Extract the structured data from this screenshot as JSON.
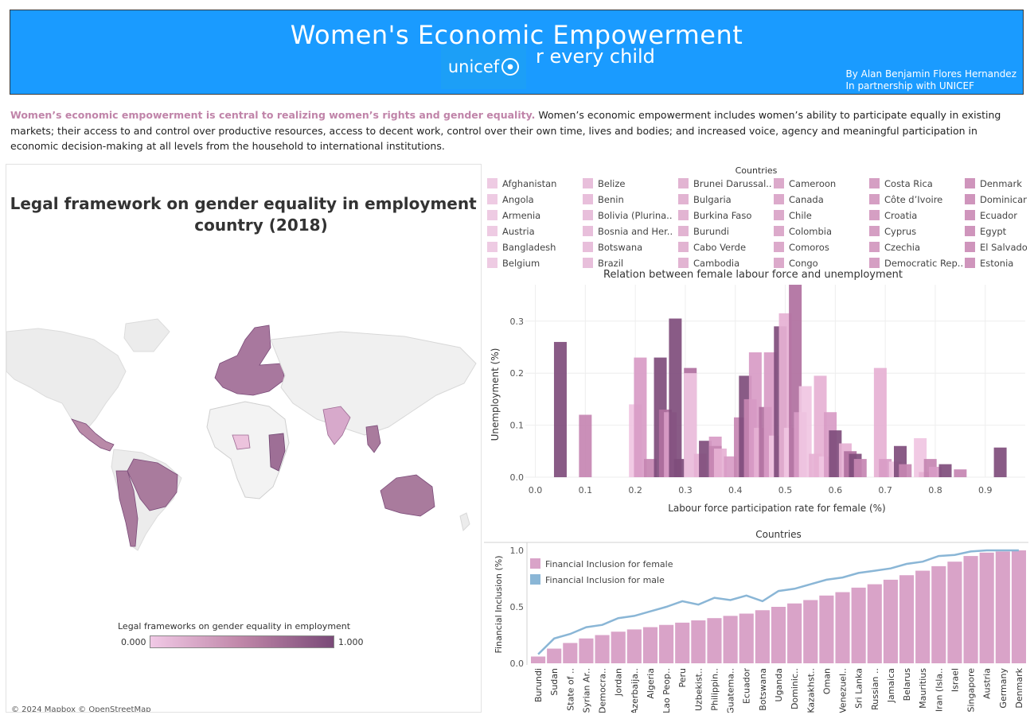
{
  "header": {
    "title": "Women's Economic Empowerment",
    "logo_text": "unicef",
    "tagline": "r every child",
    "byline_1": "By Alan Benjamin Flores Hernandez",
    "byline_2": "In partnership with UNICEF",
    "background_color": "#1a9bff"
  },
  "intro": {
    "highlight": "Women’s economic empowerment is central to realizing women’s rights and gender equality.",
    "body": " Women’s economic empowerment includes women’s ability to participate equally in existing markets; their access to and control over productive resources, access to decent work, control over their own time, lives and bodies; and increased voice, agency and meaningful participation in economic decision-making at all levels from the household to international institutions."
  },
  "map": {
    "title": "Legal framework on gender equality in employment per country (2018)",
    "legend_title": "Legal frameworks on gender equality in employment",
    "legend_min": "0.000",
    "legend_max": "1.000",
    "credit": "© 2024 Mapbox © OpenStreetMap",
    "color_low": "#f1c9e6",
    "color_high": "#7a4a78"
  },
  "countries_legend": {
    "title": "Countries",
    "columns": [
      [
        "Afghanistan",
        "Angola",
        "Armenia",
        "Austria",
        "Bangladesh",
        "Belgium"
      ],
      [
        "Belize",
        "Benin",
        "Bolivia (Plurina..",
        "Bosnia and Her..",
        "Botswana",
        "Brazil"
      ],
      [
        "Brunei Darussal..",
        "Bulgaria",
        "Burkina Faso",
        "Burundi",
        "Cabo Verde",
        "Cambodia"
      ],
      [
        "Cameroon",
        "Canada",
        "Chile",
        "Colombia",
        "Comoros",
        "Congo"
      ],
      [
        "Costa Rica",
        "Côte d’Ivoire",
        "Croatia",
        "Cyprus",
        "Czechia",
        "Democratic Rep.."
      ],
      [
        "Denmark",
        "Dominican..",
        "Ecuador",
        "Egypt",
        "El Salvador",
        "Estonia"
      ]
    ],
    "swatch_colors": [
      "#eecbe3",
      "#e8bfdb",
      "#e2b4d2",
      "#dcaacb",
      "#d59fc3",
      "#cf95bc"
    ]
  },
  "scatter": {
    "title": "Relation between female labour force and unemployment",
    "xlabel": "Labour force participation rate for female (%)",
    "ylabel": "Unemployment (%)",
    "x_ticks": [
      "0.0",
      "0.1",
      "0.2",
      "0.3",
      "0.4",
      "0.5",
      "0.6",
      "0.7",
      "0.8",
      "0.9"
    ],
    "y_ticks": [
      "0.0",
      "0.1",
      "0.2",
      "0.3"
    ]
  },
  "inclusion": {
    "title": "Countries",
    "ylabel": "Financial Inclusion (%)",
    "legend_female": "Financial Inclusion for female",
    "legend_male": "Financial Inclusion for male",
    "y_ticks": [
      "0.0",
      "0.5",
      "1.0"
    ],
    "female_color": "#d9a3c8",
    "male_color": "#8ab6d6"
  },
  "chart_data": [
    {
      "type": "bar",
      "title": "Relation between female labour force and unemployment",
      "xlabel": "Labour force participation rate for female (%)",
      "ylabel": "Unemployment (%)",
      "xlim": [
        -0.02,
        0.98
      ],
      "ylim": [
        0,
        0.37
      ],
      "bars": [
        {
          "x": 0.05,
          "y": 0.26,
          "c": 5
        },
        {
          "x": 0.1,
          "y": 0.12,
          "c": 3
        },
        {
          "x": 0.2,
          "y": 0.14,
          "c": 0
        },
        {
          "x": 0.21,
          "y": 0.23,
          "c": 2
        },
        {
          "x": 0.23,
          "y": 0.035,
          "c": 3
        },
        {
          "x": 0.25,
          "y": 0.23,
          "c": 5
        },
        {
          "x": 0.26,
          "y": 0.13,
          "c": 4
        },
        {
          "x": 0.27,
          "y": 0.125,
          "c": 2
        },
        {
          "x": 0.28,
          "y": 0.305,
          "c": 5
        },
        {
          "x": 0.29,
          "y": 0.035,
          "c": 5
        },
        {
          "x": 0.31,
          "y": 0.21,
          "c": 4
        },
        {
          "x": 0.31,
          "y": 0.2,
          "c": 0
        },
        {
          "x": 0.33,
          "y": 0.045,
          "c": 1
        },
        {
          "x": 0.34,
          "y": 0.07,
          "c": 5
        },
        {
          "x": 0.36,
          "y": 0.078,
          "c": 2
        },
        {
          "x": 0.36,
          "y": 0.06,
          "c": 3
        },
        {
          "x": 0.37,
          "y": 0.055,
          "c": 1
        },
        {
          "x": 0.39,
          "y": 0.04,
          "c": 2
        },
        {
          "x": 0.41,
          "y": 0.115,
          "c": 3
        },
        {
          "x": 0.42,
          "y": 0.195,
          "c": 5
        },
        {
          "x": 0.43,
          "y": 0.15,
          "c": 3
        },
        {
          "x": 0.44,
          "y": 0.24,
          "c": 2
        },
        {
          "x": 0.45,
          "y": 0.095,
          "c": 1
        },
        {
          "x": 0.46,
          "y": 0.135,
          "c": 4
        },
        {
          "x": 0.47,
          "y": 0.24,
          "c": 2
        },
        {
          "x": 0.48,
          "y": 0.08,
          "c": 0
        },
        {
          "x": 0.49,
          "y": 0.29,
          "c": 5
        },
        {
          "x": 0.5,
          "y": 0.315,
          "c": 1
        },
        {
          "x": 0.51,
          "y": 0.095,
          "c": 0
        },
        {
          "x": 0.52,
          "y": 0.37,
          "c": 4
        },
        {
          "x": 0.53,
          "y": 0.125,
          "c": 2
        },
        {
          "x": 0.54,
          "y": 0.175,
          "c": 0
        },
        {
          "x": 0.56,
          "y": 0.045,
          "c": 1
        },
        {
          "x": 0.57,
          "y": 0.195,
          "c": 1
        },
        {
          "x": 0.58,
          "y": 0.04,
          "c": 0
        },
        {
          "x": 0.59,
          "y": 0.125,
          "c": 2
        },
        {
          "x": 0.6,
          "y": 0.09,
          "c": 5
        },
        {
          "x": 0.62,
          "y": 0.065,
          "c": 1
        },
        {
          "x": 0.63,
          "y": 0.05,
          "c": 4
        },
        {
          "x": 0.64,
          "y": 0.045,
          "c": 5
        },
        {
          "x": 0.65,
          "y": 0.035,
          "c": 3
        },
        {
          "x": 0.69,
          "y": 0.21,
          "c": 1
        },
        {
          "x": 0.7,
          "y": 0.035,
          "c": 2
        },
        {
          "x": 0.72,
          "y": 0.03,
          "c": 0
        },
        {
          "x": 0.73,
          "y": 0.06,
          "c": 5
        },
        {
          "x": 0.74,
          "y": 0.025,
          "c": 3
        },
        {
          "x": 0.77,
          "y": 0.075,
          "c": 0
        },
        {
          "x": 0.78,
          "y": 0.01,
          "c": 1
        },
        {
          "x": 0.79,
          "y": 0.035,
          "c": 3
        },
        {
          "x": 0.8,
          "y": 0.02,
          "c": 2
        },
        {
          "x": 0.82,
          "y": 0.025,
          "c": 5
        },
        {
          "x": 0.85,
          "y": 0.015,
          "c": 3
        },
        {
          "x": 0.93,
          "y": 0.057,
          "c": 5
        }
      ]
    },
    {
      "type": "bar",
      "title": "Countries",
      "ylabel": "Financial Inclusion (%)",
      "ylim": [
        0,
        1
      ],
      "categories": [
        "Burundi",
        "Sudan",
        "State of ..",
        "Syrian Ar..",
        "Democra..",
        "Jordan",
        "Azerbaija..",
        "Algeria",
        "Lao Peop..",
        "Peru",
        "Uzbekist..",
        "Philippin..",
        "Guatema..",
        "Ecuador",
        "Botswana",
        "Uganda",
        "Dominic..",
        "Kazakhst..",
        "Oman",
        "Venezuel..",
        "Sri Lanka",
        "Russian ..",
        "Jamaica",
        "Belarus",
        "Mauritius",
        "Iran (Isla..",
        "Israel",
        "Singapore",
        "Austria",
        "Germany",
        "Denmark"
      ],
      "series": [
        {
          "name": "Financial Inclusion for female",
          "values": [
            0.06,
            0.13,
            0.18,
            0.22,
            0.25,
            0.28,
            0.3,
            0.32,
            0.34,
            0.36,
            0.38,
            0.4,
            0.42,
            0.44,
            0.47,
            0.5,
            0.53,
            0.56,
            0.6,
            0.63,
            0.67,
            0.7,
            0.74,
            0.78,
            0.82,
            0.86,
            0.9,
            0.95,
            0.98,
            0.99,
            1.0
          ]
        },
        {
          "name": "Financial Inclusion for male",
          "values": [
            0.08,
            0.22,
            0.26,
            0.32,
            0.34,
            0.4,
            0.42,
            0.46,
            0.5,
            0.55,
            0.52,
            0.58,
            0.56,
            0.6,
            0.55,
            0.64,
            0.66,
            0.7,
            0.74,
            0.76,
            0.8,
            0.82,
            0.84,
            0.88,
            0.9,
            0.95,
            0.96,
            0.99,
            1.0,
            1.0,
            1.0
          ]
        }
      ]
    }
  ]
}
